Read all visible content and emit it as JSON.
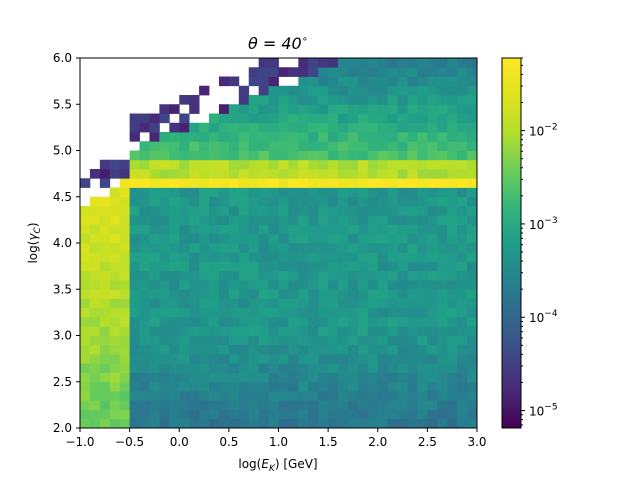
{
  "chart_data": {
    "type": "heatmap",
    "title_prefix": "θ = 40",
    "title_suffix": "∘",
    "xlabel_prefix": "log(",
    "xlabel_var": "E",
    "xlabel_sub": "K",
    "xlabel_suffix": ") [GeV]",
    "ylabel_prefix": "log(",
    "ylabel_var": "γ",
    "ylabel_sub": "C",
    "ylabel_suffix": ")",
    "xlim": [
      -1.0,
      3.0
    ],
    "ylim": [
      2.0,
      6.0
    ],
    "x_ticks": [
      -1.0,
      -0.5,
      0.0,
      0.5,
      1.0,
      1.5,
      2.0,
      2.5,
      3.0
    ],
    "x_tick_labels": [
      "−1.0",
      "−0.5",
      "0.0",
      "0.5",
      "1.0",
      "1.5",
      "2.0",
      "2.5",
      "3.0"
    ],
    "y_ticks": [
      2.0,
      2.5,
      3.0,
      3.5,
      4.0,
      4.5,
      5.0,
      5.5,
      6.0
    ],
    "y_tick_labels": [
      "2.0",
      "2.5",
      "3.0",
      "3.5",
      "4.0",
      "4.5",
      "5.0",
      "5.5",
      "6.0"
    ],
    "bins": {
      "nx": 40,
      "ny": 40
    },
    "band": {
      "y_center": 4.68,
      "width": 0.06,
      "start_x": -0.5
    },
    "colorbar": {
      "scale": "log",
      "vmin": 6.5e-06,
      "vmax": 0.06,
      "ticks": [
        1e-05,
        0.0001,
        0.001,
        0.01
      ],
      "tick_bases": [
        "10",
        "10",
        "10",
        "10"
      ],
      "tick_exponents": [
        "−5",
        "−4",
        "−3",
        "−2"
      ],
      "colormap": "viridis"
    },
    "grid": false
  }
}
